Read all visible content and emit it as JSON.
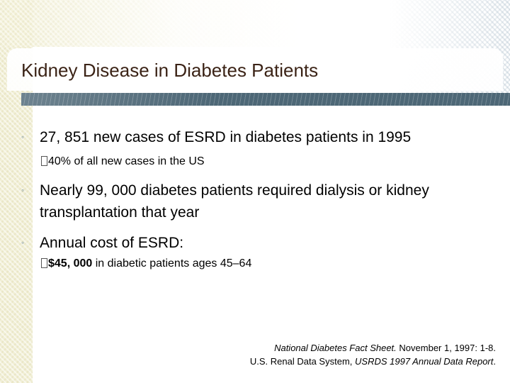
{
  "slide": {
    "title": "Kidney Disease in Diabetes Patients",
    "bullets": [
      {
        "text": "27, 851 new cases of ESRD in diabetes patients in 1995",
        "sub": "40% of all new cases in the US"
      },
      {
        "line1": "Nearly 99, 000 diabetes patients required dialysis or kidney",
        "line2": "transplantation that year"
      },
      {
        "text": "Annual cost of ESRD:",
        "sub_bold": "$45, 000",
        "sub_rest": " in diabetic patients ages 45–64"
      }
    ],
    "citation": {
      "line1_source": "National Diabetes Fact Sheet.",
      "line1_rest": " November 1, 1997: 1-8.",
      "line2_prefix": "U.S. Renal Data System, ",
      "line2_source": "USRDS 1997 Annual Data Report",
      "line2_suffix": "."
    }
  },
  "theme": {
    "title_color": "#3b2316",
    "band_color": "#4d6776",
    "bullet_color": "#6f8a99"
  }
}
